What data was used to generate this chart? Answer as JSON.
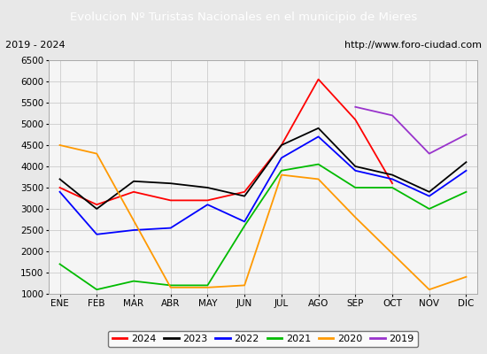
{
  "title": "Evolucion Nº Turistas Nacionales en el municipio de Mieres",
  "subtitle_left": "2019 - 2024",
  "subtitle_right": "http://www.foro-ciudad.com",
  "title_bg_color": "#4d7ebf",
  "title_text_color": "#ffffff",
  "months": [
    "ENE",
    "FEB",
    "MAR",
    "ABR",
    "MAY",
    "JUN",
    "JUL",
    "AGO",
    "SEP",
    "OCT",
    "NOV",
    "DIC"
  ],
  "ylim": [
    1000,
    6500
  ],
  "yticks": [
    1000,
    1500,
    2000,
    2500,
    3000,
    3500,
    4000,
    4500,
    5000,
    5500,
    6000,
    6500
  ],
  "series": {
    "2024": {
      "color": "#ff0000",
      "data": [
        3500,
        3100,
        3400,
        3200,
        3200,
        3400,
        4500,
        6050,
        5100,
        3600,
        null,
        null
      ]
    },
    "2023": {
      "color": "#000000",
      "data": [
        3700,
        3000,
        3650,
        3600,
        3500,
        3300,
        4500,
        4900,
        4000,
        3800,
        3400,
        4100
      ]
    },
    "2022": {
      "color": "#0000ff",
      "data": [
        3400,
        2400,
        2500,
        2550,
        3100,
        2700,
        4200,
        4700,
        3900,
        3700,
        3300,
        3900
      ]
    },
    "2021": {
      "color": "#00bb00",
      "data": [
        1700,
        1100,
        1300,
        1200,
        1200,
        2600,
        3900,
        4050,
        3500,
        3500,
        3000,
        3400
      ]
    },
    "2020": {
      "color": "#ff9900",
      "data": [
        4500,
        4300,
        null,
        1150,
        1150,
        1200,
        3800,
        3700,
        2800,
        null,
        1100,
        1400
      ]
    },
    "2019": {
      "color": "#9933cc",
      "data": [
        null,
        null,
        null,
        null,
        null,
        null,
        null,
        null,
        5400,
        5200,
        4300,
        4750
      ]
    }
  },
  "legend_order": [
    "2024",
    "2023",
    "2022",
    "2021",
    "2020",
    "2019"
  ],
  "bg_color": "#e8e8e8",
  "plot_bg_color": "#f5f5f5",
  "grid_color": "#cccccc"
}
